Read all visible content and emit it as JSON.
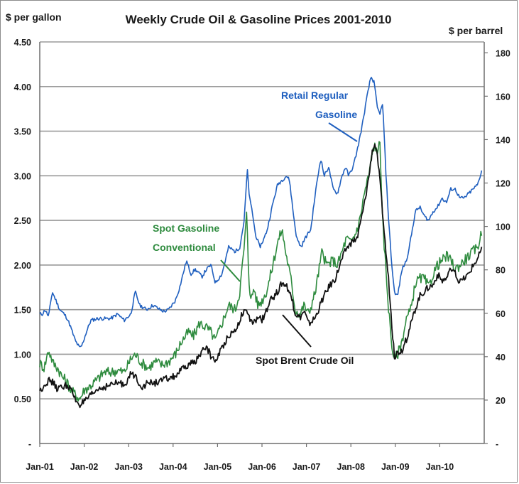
{
  "chart_data": {
    "type": "line",
    "title": "Weekly Crude Oil & Gasoline Prices 2001-2010",
    "ylabel_left": "$ per gallon",
    "ylabel_right": "$ per barrel",
    "x_ticks": [
      "Jan-01",
      "Jan-02",
      "Jan-03",
      "Jan-04",
      "Jan-05",
      "Jan-06",
      "Jan-07",
      "Jan-08",
      "Jan-09",
      "Jan-10"
    ],
    "x_range": [
      2001.0,
      2011.0
    ],
    "ylim_left": [
      0,
      4.5
    ],
    "ylim_right": [
      0,
      185
    ],
    "yticks_left": [
      "-",
      "0.50",
      "1.00",
      "1.50",
      "2.00",
      "2.50",
      "3.00",
      "3.50",
      "4.00",
      "4.50"
    ],
    "yticks_right": [
      "-",
      "20",
      "40",
      "60",
      "80",
      "100",
      "120",
      "140",
      "160",
      "180"
    ],
    "grid": true,
    "colors": {
      "retail": "#1f5fbf",
      "spot_gasoline": "#2e8b3e",
      "brent": "#111111",
      "grid": "#9a9a9a"
    },
    "series": [
      {
        "name": "Retail Regular Gasoline",
        "axis": "left",
        "x": [
          2001.0,
          2001.06,
          2001.12,
          2001.2,
          2001.28,
          2001.35,
          2001.45,
          2001.55,
          2001.62,
          2001.7,
          2001.8,
          2001.9,
          2001.95,
          2002.05,
          2002.15,
          2002.3,
          2002.45,
          2002.6,
          2002.75,
          2002.9,
          2003.05,
          2003.15,
          2003.25,
          2003.4,
          2003.55,
          2003.7,
          2003.8,
          2003.9,
          2004.05,
          2004.15,
          2004.3,
          2004.4,
          2004.5,
          2004.65,
          2004.75,
          2004.85,
          2004.95,
          2005.1,
          2005.25,
          2005.4,
          2005.5,
          2005.6,
          2005.67,
          2005.72,
          2005.78,
          2005.85,
          2005.95,
          2006.05,
          2006.12,
          2006.25,
          2006.35,
          2006.45,
          2006.55,
          2006.62,
          2006.7,
          2006.78,
          2006.88,
          2006.97,
          2007.1,
          2007.2,
          2007.32,
          2007.4,
          2007.5,
          2007.6,
          2007.7,
          2007.8,
          2007.88,
          2007.95,
          2008.05,
          2008.15,
          2008.25,
          2008.35,
          2008.45,
          2008.52,
          2008.6,
          2008.65,
          2008.72,
          2008.78,
          2008.85,
          2008.92,
          2008.98,
          2009.05,
          2009.15,
          2009.25,
          2009.35,
          2009.45,
          2009.55,
          2009.65,
          2009.75,
          2009.85,
          2009.95,
          2010.05,
          2010.15,
          2010.25,
          2010.35,
          2010.45,
          2010.55,
          2010.65,
          2010.75,
          2010.85,
          2010.95
        ],
        "y": [
          1.45,
          1.45,
          1.5,
          1.42,
          1.7,
          1.62,
          1.5,
          1.45,
          1.4,
          1.3,
          1.15,
          1.07,
          1.1,
          1.25,
          1.38,
          1.4,
          1.4,
          1.4,
          1.45,
          1.38,
          1.45,
          1.7,
          1.55,
          1.5,
          1.55,
          1.5,
          1.48,
          1.5,
          1.6,
          1.75,
          2.05,
          1.9,
          1.95,
          1.87,
          1.95,
          2.0,
          1.8,
          1.9,
          2.2,
          2.15,
          2.2,
          2.5,
          3.07,
          2.75,
          2.6,
          2.35,
          2.2,
          2.3,
          2.4,
          2.7,
          2.9,
          2.95,
          3.0,
          2.95,
          2.6,
          2.3,
          2.2,
          2.3,
          2.4,
          2.8,
          3.2,
          3.0,
          3.1,
          2.85,
          2.8,
          3.0,
          3.1,
          3.0,
          3.1,
          3.3,
          3.55,
          3.85,
          4.11,
          4.05,
          3.75,
          3.7,
          3.8,
          3.1,
          2.5,
          2.0,
          1.7,
          1.65,
          1.95,
          2.05,
          2.3,
          2.6,
          2.65,
          2.55,
          2.5,
          2.6,
          2.65,
          2.75,
          2.7,
          2.85,
          2.85,
          2.75,
          2.75,
          2.8,
          2.85,
          2.9,
          3.07
        ]
      },
      {
        "name": "Spot Gasoline Conventional",
        "axis": "left",
        "x": [
          2001.0,
          2001.1,
          2001.2,
          2001.3,
          2001.4,
          2001.5,
          2001.6,
          2001.7,
          2001.8,
          2001.9,
          2002.0,
          2002.15,
          2002.3,
          2002.45,
          2002.6,
          2002.75,
          2002.9,
          2003.05,
          2003.15,
          2003.3,
          2003.45,
          2003.6,
          2003.75,
          2003.9,
          2004.05,
          2004.2,
          2004.35,
          2004.45,
          2004.6,
          2004.75,
          2004.85,
          2004.95,
          2005.1,
          2005.25,
          2005.4,
          2005.5,
          2005.6,
          2005.66,
          2005.7,
          2005.75,
          2005.82,
          2005.9,
          2006.0,
          2006.1,
          2006.2,
          2006.35,
          2006.45,
          2006.55,
          2006.65,
          2006.75,
          2006.85,
          2006.95,
          2007.05,
          2007.2,
          2007.35,
          2007.45,
          2007.6,
          2007.7,
          2007.8,
          2007.9,
          2008.0,
          2008.1,
          2008.2,
          2008.3,
          2008.4,
          2008.5,
          2008.55,
          2008.6,
          2008.65,
          2008.7,
          2008.78,
          2008.85,
          2008.92,
          2008.98,
          2009.05,
          2009.15,
          2009.25,
          2009.35,
          2009.45,
          2009.55,
          2009.65,
          2009.75,
          2009.85,
          2009.95,
          2010.05,
          2010.15,
          2010.25,
          2010.35,
          2010.45,
          2010.55,
          2010.65,
          2010.75,
          2010.85,
          2010.95
        ],
        "y": [
          0.9,
          0.85,
          1.05,
          0.9,
          0.85,
          0.75,
          0.7,
          0.6,
          0.55,
          0.5,
          0.6,
          0.65,
          0.72,
          0.8,
          0.8,
          0.82,
          0.8,
          0.95,
          1.0,
          0.9,
          0.85,
          0.92,
          0.88,
          0.92,
          1.0,
          1.15,
          1.25,
          1.2,
          1.35,
          1.3,
          1.25,
          1.15,
          1.35,
          1.55,
          1.5,
          1.7,
          2.2,
          2.6,
          1.9,
          1.6,
          1.75,
          1.55,
          1.6,
          1.7,
          1.9,
          2.25,
          2.4,
          2.1,
          1.85,
          1.5,
          1.45,
          1.55,
          1.45,
          1.7,
          2.15,
          2.0,
          2.05,
          2.0,
          2.15,
          2.3,
          2.25,
          2.35,
          2.5,
          2.8,
          3.0,
          3.3,
          3.35,
          3.2,
          3.5,
          2.6,
          2.0,
          1.5,
          1.1,
          0.95,
          1.0,
          1.15,
          1.4,
          1.5,
          1.8,
          1.85,
          1.85,
          1.75,
          1.9,
          2.0,
          2.05,
          2.1,
          2.05,
          1.95,
          2.0,
          2.05,
          2.1,
          2.15,
          2.2,
          2.38
        ]
      },
      {
        "name": "Spot Brent Crude Oil",
        "axis": "right",
        "x": [
          2001.0,
          2001.1,
          2001.2,
          2001.3,
          2001.4,
          2001.5,
          2001.6,
          2001.7,
          2001.8,
          2001.85,
          2001.9,
          2002.0,
          2002.15,
          2002.3,
          2002.45,
          2002.6,
          2002.75,
          2002.9,
          2003.05,
          2003.15,
          2003.3,
          2003.45,
          2003.6,
          2003.75,
          2003.9,
          2004.05,
          2004.2,
          2004.35,
          2004.5,
          2004.65,
          2004.75,
          2004.85,
          2004.95,
          2005.1,
          2005.25,
          2005.4,
          2005.5,
          2005.6,
          2005.7,
          2005.8,
          2005.9,
          2006.0,
          2006.1,
          2006.2,
          2006.35,
          2006.45,
          2006.55,
          2006.65,
          2006.75,
          2006.85,
          2006.95,
          2007.05,
          2007.2,
          2007.35,
          2007.5,
          2007.65,
          2007.8,
          2007.9,
          2008.0,
          2008.15,
          2008.3,
          2008.42,
          2008.48,
          2008.55,
          2008.62,
          2008.7,
          2008.78,
          2008.85,
          2008.92,
          2008.98,
          2009.05,
          2009.15,
          2009.25,
          2009.35,
          2009.45,
          2009.55,
          2009.65,
          2009.75,
          2009.85,
          2009.95,
          2010.05,
          2010.15,
          2010.25,
          2010.35,
          2010.45,
          2010.55,
          2010.65,
          2010.75,
          2010.85,
          2010.95
        ],
        "y": [
          24,
          27,
          29,
          28,
          25,
          26,
          27,
          25,
          20,
          19,
          18,
          19,
          22,
          25,
          26,
          27,
          28,
          27,
          32,
          31,
          26,
          28,
          28,
          29,
          30,
          31,
          34,
          36,
          38,
          42,
          45,
          40,
          38,
          44,
          50,
          52,
          57,
          62,
          58,
          55,
          58,
          57,
          61,
          66,
          70,
          74,
          73,
          68,
          60,
          58,
          61,
          55,
          58,
          66,
          72,
          76,
          85,
          90,
          92,
          95,
          110,
          125,
          135,
          138,
          128,
          110,
          90,
          75,
          55,
          40,
          42,
          43,
          48,
          55,
          62,
          68,
          70,
          72,
          73,
          78,
          75,
          76,
          80,
          78,
          74,
          76,
          78,
          82,
          85,
          90
        ]
      }
    ],
    "annotations": [
      {
        "line1": "Retail  Regular",
        "line2": "Gasoline",
        "series": "Retail Regular Gasoline"
      },
      {
        "line1": "Spot Gasoline",
        "line2": "Conventional",
        "series": "Spot Gasoline Conventional"
      },
      {
        "line1": "Spot Brent Crude Oil",
        "series": "Spot Brent Crude Oil"
      }
    ]
  }
}
